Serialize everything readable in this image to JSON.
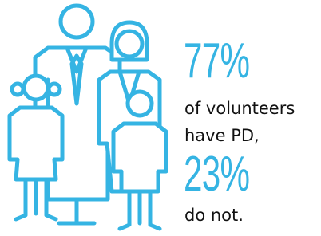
{
  "stat_1": {
    "value": "77%",
    "lines": [
      "of volunteers",
      "have PD,"
    ]
  },
  "stat_2": {
    "value": "23%",
    "lines": [
      "do not."
    ]
  }
}
